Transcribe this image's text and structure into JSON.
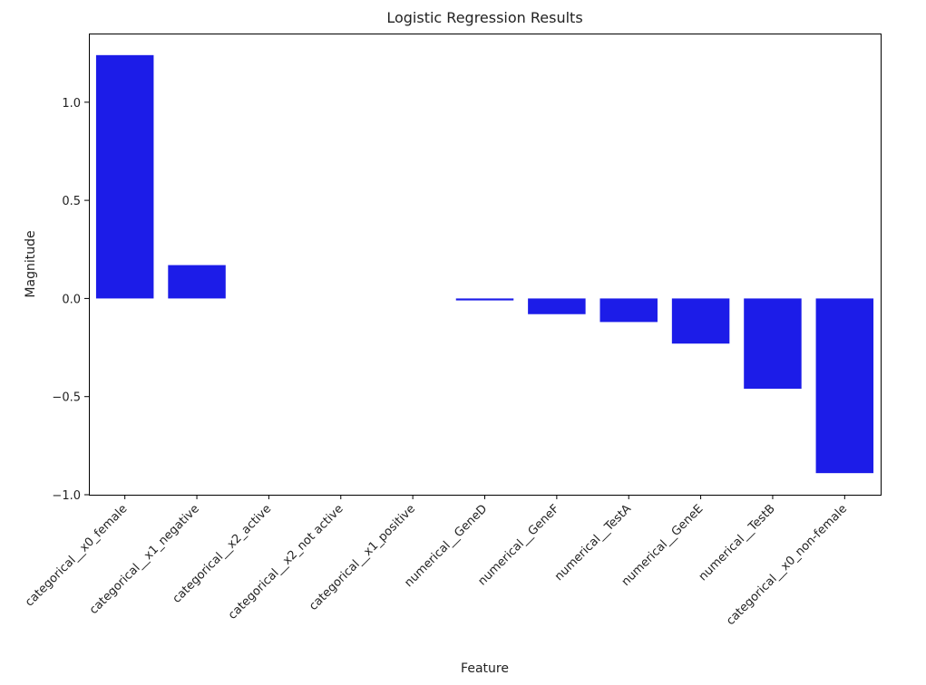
{
  "chart_data": {
    "type": "bar",
    "title": "Logistic Regression Results",
    "xlabel": "Feature",
    "ylabel": "Magnitude",
    "categories": [
      "categorical__x0_female",
      "categorical__x1_negative",
      "categorical__x2_active",
      "categorical__x2_not active",
      "categorical__x1_positive",
      "numerical__GeneD",
      "numerical__GeneF",
      "numerical__TestA",
      "numerical__GeneE",
      "numerical__TestB",
      "categorical__x0_non-female"
    ],
    "values": [
      1.24,
      0.17,
      0.0,
      0.0,
      0.0,
      -0.01,
      -0.08,
      -0.12,
      -0.23,
      -0.46,
      -0.89
    ],
    "ylim": [
      -1.0,
      1.35
    ],
    "yticks": [
      -1.0,
      -0.5,
      0.0,
      0.5,
      1.0
    ],
    "ytick_labels": [
      "−1.0",
      "−0.5",
      "0.0",
      "0.5",
      "1.0"
    ],
    "bar_color": "#1c1ce8",
    "grid": false,
    "legend": "none"
  }
}
